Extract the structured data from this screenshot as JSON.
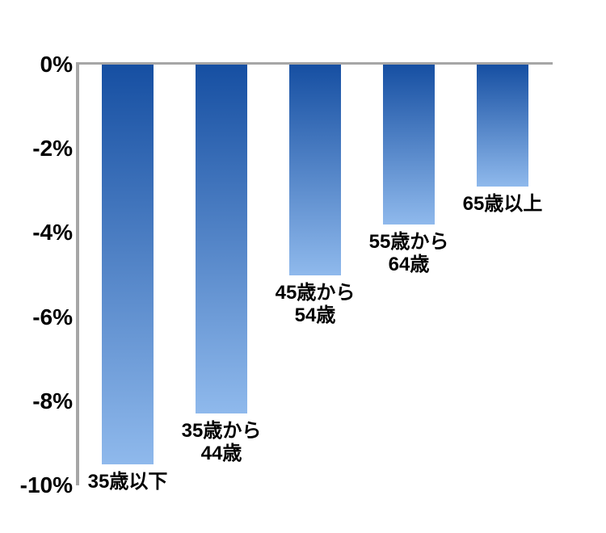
{
  "chart_data": {
    "type": "bar",
    "title": "",
    "xlabel": "",
    "ylabel": "",
    "categories": [
      "35歳以下",
      "35歳から44歳",
      "45歳から54歳",
      "55歳から64歳",
      "65歳以上"
    ],
    "category_lines": [
      [
        "35歳以下"
      ],
      [
        "35歳から",
        "44歳"
      ],
      [
        "45歳から",
        "54歳"
      ],
      [
        "55歳から",
        "64歳"
      ],
      [
        "65歳以上"
      ]
    ],
    "values": [
      -9.5,
      -8.3,
      -5.0,
      -3.8,
      -2.9
    ],
    "ylim": [
      -10,
      0
    ],
    "yticks": [
      {
        "label": "0%",
        "value": 0
      },
      {
        "label": "-2%",
        "value": -2
      },
      {
        "label": "-4%",
        "value": -4
      },
      {
        "label": "-6%",
        "value": -6
      },
      {
        "label": "-8%",
        "value": -8
      },
      {
        "label": "-10%",
        "value": -10
      }
    ],
    "grid": false,
    "legend": false,
    "colors": {
      "bar_gradient_top": "#164fa2",
      "bar_gradient_bottom": "#8fb9ec",
      "axis": "#a6a6a6",
      "text": "#000000",
      "background": "#ffffff"
    }
  }
}
